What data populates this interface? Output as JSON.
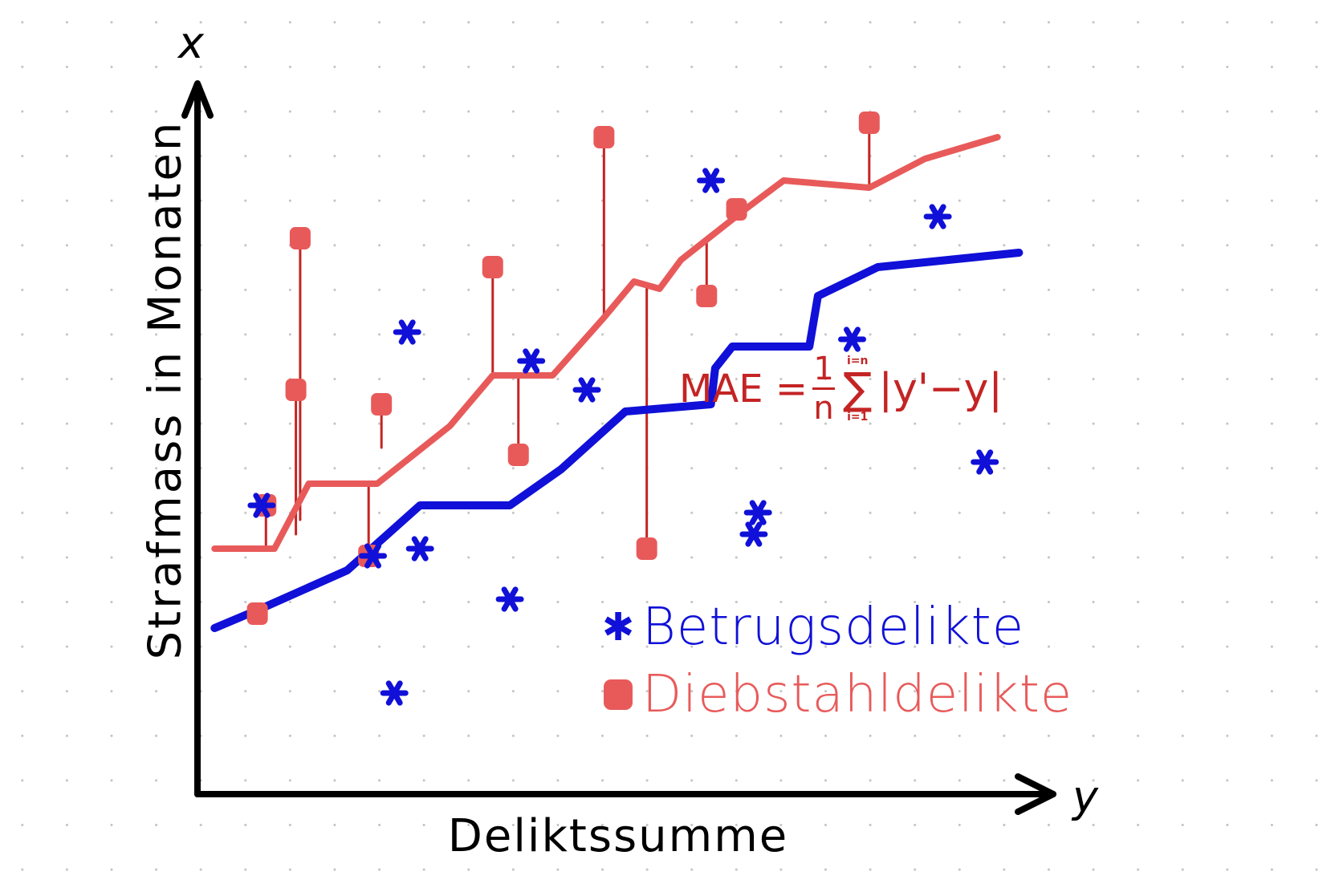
{
  "colors": {
    "axis": "#000000",
    "fraud": "#1010d8",
    "theft": "#e85a5a",
    "formula": "#c42424"
  },
  "axes": {
    "vertical_letter": "x",
    "horizontal_letter": "y",
    "xlabel": "Deliktssumme",
    "ylabel": "Strafmass in Monaten"
  },
  "formula": {
    "lhs": "MAE =",
    "numerator": "1",
    "denominator": "n",
    "sum_upper": "i=n",
    "sum_symbol": "∑",
    "sum_lower": "i=1",
    "rhs": "|y'−y|"
  },
  "legend": [
    {
      "marker": "star",
      "label": "Betrugsdelikte",
      "color_key": "fraud"
    },
    {
      "marker": "square",
      "label": "Diebstahldelikte",
      "color_key": "theft"
    }
  ],
  "diagram": {
    "fraud_points": [
      [
        0.075,
        0.4
      ],
      [
        0.245,
        0.64
      ],
      [
        0.23,
        0.14
      ],
      [
        0.205,
        0.33
      ],
      [
        0.26,
        0.34
      ],
      [
        0.365,
        0.27
      ],
      [
        0.39,
        0.6
      ],
      [
        0.455,
        0.56
      ],
      [
        0.6,
        0.85
      ],
      [
        0.65,
        0.36
      ],
      [
        0.655,
        0.39
      ],
      [
        0.765,
        0.63
      ],
      [
        0.865,
        0.8
      ],
      [
        0.92,
        0.46
      ]
    ],
    "theft_points": [
      [
        0.07,
        0.25
      ],
      [
        0.08,
        0.4
      ],
      [
        0.115,
        0.56
      ],
      [
        0.12,
        0.77
      ],
      [
        0.2,
        0.33
      ],
      [
        0.215,
        0.54
      ],
      [
        0.345,
        0.73
      ],
      [
        0.375,
        0.47
      ],
      [
        0.475,
        0.91
      ],
      [
        0.525,
        0.34
      ],
      [
        0.595,
        0.69
      ],
      [
        0.63,
        0.81
      ],
      [
        0.785,
        0.93
      ]
    ],
    "fraud_fit": [
      [
        0.02,
        0.23
      ],
      [
        0.08,
        0.26
      ],
      [
        0.175,
        0.31
      ],
      [
        0.26,
        0.4
      ],
      [
        0.365,
        0.4
      ],
      [
        0.425,
        0.45
      ],
      [
        0.5,
        0.53
      ],
      [
        0.6,
        0.54
      ],
      [
        0.605,
        0.59
      ],
      [
        0.625,
        0.62
      ],
      [
        0.715,
        0.62
      ],
      [
        0.725,
        0.69
      ],
      [
        0.795,
        0.73
      ],
      [
        0.96,
        0.75
      ]
    ],
    "theft_fit": [
      [
        0.02,
        0.34
      ],
      [
        0.09,
        0.34
      ],
      [
        0.13,
        0.43
      ],
      [
        0.21,
        0.43
      ],
      [
        0.295,
        0.51
      ],
      [
        0.345,
        0.58
      ],
      [
        0.415,
        0.58
      ],
      [
        0.43,
        0.6
      ],
      [
        0.475,
        0.66
      ],
      [
        0.51,
        0.71
      ],
      [
        0.54,
        0.7
      ],
      [
        0.565,
        0.74
      ],
      [
        0.64,
        0.81
      ],
      [
        0.685,
        0.85
      ],
      [
        0.785,
        0.84
      ],
      [
        0.85,
        0.88
      ],
      [
        0.935,
        0.91
      ]
    ],
    "residual_pairs": [
      [
        0.07,
        0.25,
        0.26
      ],
      [
        0.08,
        0.4,
        0.34
      ],
      [
        0.115,
        0.56,
        0.36
      ],
      [
        0.12,
        0.77,
        0.38
      ],
      [
        0.2,
        0.33,
        0.43
      ],
      [
        0.215,
        0.54,
        0.48
      ],
      [
        0.345,
        0.73,
        0.58
      ],
      [
        0.375,
        0.47,
        0.58
      ],
      [
        0.475,
        0.91,
        0.66
      ],
      [
        0.525,
        0.34,
        0.7
      ],
      [
        0.595,
        0.69,
        0.77
      ],
      [
        0.785,
        0.93,
        0.84
      ]
    ]
  }
}
